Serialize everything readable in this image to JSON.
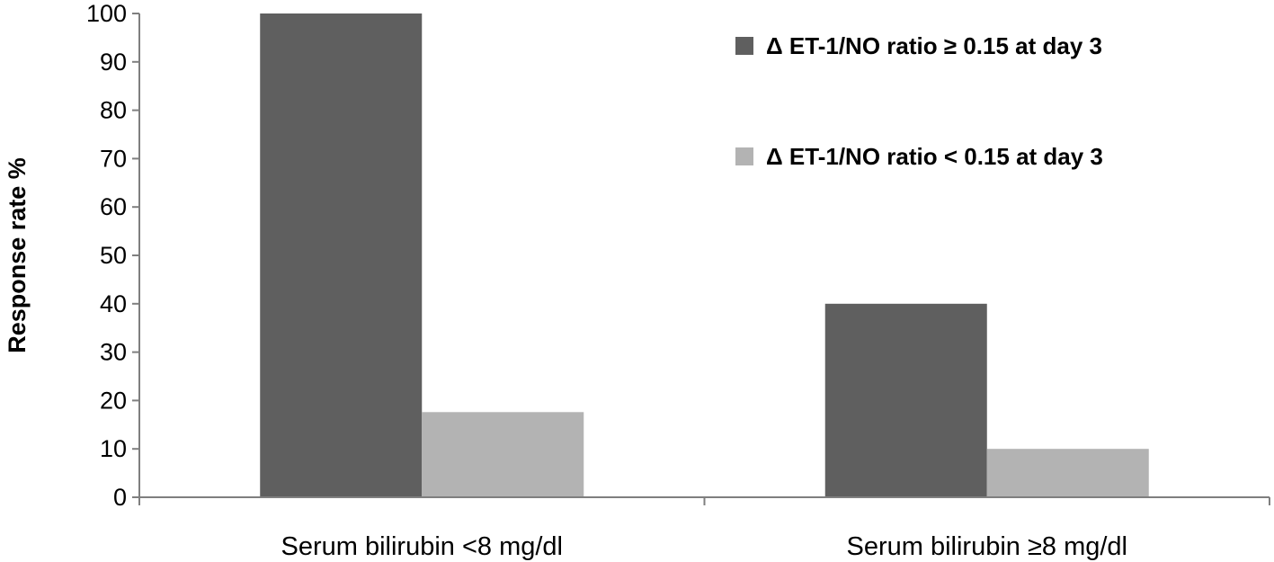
{
  "chart_data": {
    "type": "bar",
    "title": "",
    "xlabel": "",
    "ylabel": "Response rate %",
    "ylim": [
      0,
      100
    ],
    "yticks": [
      0,
      10,
      20,
      30,
      40,
      50,
      60,
      70,
      80,
      90,
      100
    ],
    "categories": [
      "Serum bilirubin <8 mg/dl",
      "Serum bilirubin ≥8 mg/dl"
    ],
    "series": [
      {
        "name": "Δ ET-1/NO ratio ≥ 0.15 at day 3",
        "values": [
          100,
          40
        ],
        "color": "#5f5f5f"
      },
      {
        "name": "Δ ET-1/NO ratio < 0.15 at day 3",
        "values": [
          17.6,
          10
        ],
        "color": "#b3b3b3"
      }
    ],
    "grid": false,
    "legend_position": "top-right"
  }
}
